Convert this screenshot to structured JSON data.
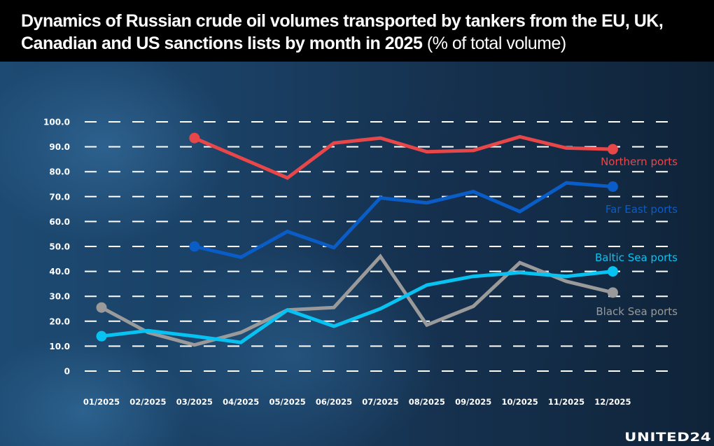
{
  "header": {
    "title_main": "Dynamics of Russian crude oil volumes transported by tankers from the EU, UK, Canadian and US sanctions lists by month in 2025",
    "title_unit": "(% of total volume)"
  },
  "logo": {
    "text": "UNITED24"
  },
  "colors": {
    "northern": "#e8474a",
    "far_east": "#0a5cc7",
    "baltic": "#08c3f2",
    "black_sea": "#9a9a9a",
    "grid": "#ffffff"
  },
  "chart_data": {
    "type": "line",
    "title": "Dynamics of Russian crude oil volumes transported by tankers from the EU, UK, Canadian and US sanctions lists by month in 2025 (% of total volume)",
    "xlabel": "",
    "ylabel": "% of total volume",
    "ylim": [
      0,
      100
    ],
    "yticks": [
      "0",
      "10.0",
      "20.0",
      "30.0",
      "40.0",
      "50.0",
      "60.0",
      "70.0",
      "80.0",
      "90.0",
      "100.0"
    ],
    "grid": true,
    "legend_position": "inline-right",
    "categories": [
      "01/2025",
      "02/2025",
      "03/2025",
      "04/2025",
      "05/2025",
      "06/2025",
      "07/2025",
      "08/2025",
      "09/2025",
      "10/2025",
      "11/2025",
      "12/2025"
    ],
    "series": [
      {
        "name": "Northern ports",
        "color": "#e8474a",
        "values": [
          null,
          null,
          93.5,
          85.5,
          77.5,
          91.5,
          93.5,
          88.0,
          88.5,
          94.0,
          89.5,
          89.0
        ]
      },
      {
        "name": "Far East ports",
        "color": "#0a5cc7",
        "values": [
          null,
          null,
          50.0,
          45.7,
          56.0,
          49.5,
          69.5,
          67.5,
          72.0,
          64.0,
          75.5,
          74.0
        ]
      },
      {
        "name": "Baltic Sea ports",
        "color": "#08c3f2",
        "values": [
          14.0,
          16.2,
          14.0,
          11.5,
          24.5,
          18.0,
          25.0,
          34.5,
          38.0,
          39.5,
          38.0,
          40.0
        ]
      },
      {
        "name": "Black Sea ports",
        "color": "#9a9a9a",
        "values": [
          25.5,
          15.5,
          10.5,
          15.5,
          24.5,
          25.5,
          46.0,
          18.5,
          26.0,
          43.5,
          36.0,
          31.5
        ]
      }
    ]
  }
}
